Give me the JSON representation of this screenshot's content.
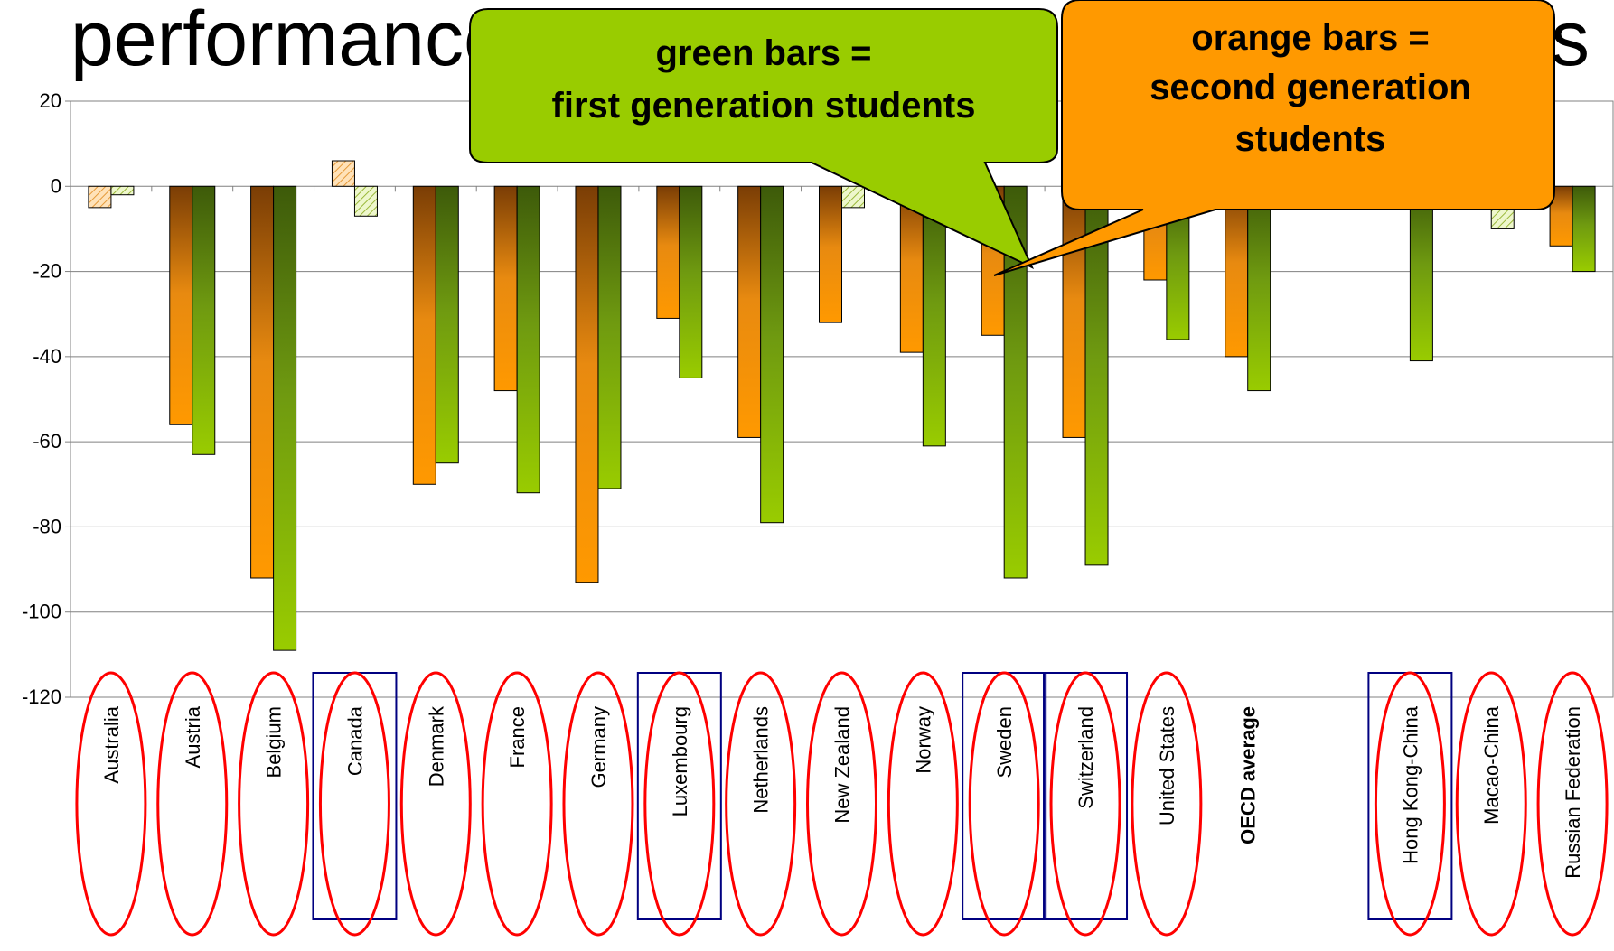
{
  "title_fragments": {
    "left": "performance by immig",
    "right": "s"
  },
  "callouts": {
    "green": {
      "line1": "green bars =",
      "line2": "first generation students"
    },
    "orange": {
      "line1": "orange bars =",
      "line2": "second generation",
      "line3": "students"
    }
  },
  "colors": {
    "second_generation": "#FF9900",
    "first_generation": "#99CC00",
    "callout_green": "#99CC00",
    "callout_orange": "#FF9900",
    "oval": "#FF0000",
    "box": "#000080"
  },
  "chart_data": {
    "type": "bar",
    "title": "",
    "xlabel": "",
    "ylabel": "",
    "ylim": [
      -120,
      20
    ],
    "yticks": [
      20,
      0,
      -20,
      -40,
      -60,
      -80,
      -100,
      -120
    ],
    "grid": true,
    "categories": [
      "Australia",
      "Austria",
      "Belgium",
      "Canada",
      "Denmark",
      "France",
      "Germany",
      "Luxembourg",
      "Netherlands",
      "New Zealand",
      "Norway",
      "Sweden",
      "Switzerland",
      "United States",
      "OECD average",
      "",
      "Hong Kong-China",
      "Macao-China",
      "Russian Federation"
    ],
    "series": [
      {
        "values": [
          -5,
          -56,
          -92,
          6,
          -70,
          -48,
          -93,
          -31,
          -59,
          -32,
          -39,
          -35,
          -59,
          -22,
          -40,
          null,
          null,
          null,
          -14
        ],
        "not_significant": [
          true,
          false,
          false,
          true,
          false,
          false,
          false,
          false,
          false,
          false,
          false,
          false,
          false,
          false,
          false,
          false,
          false,
          false,
          false
        ]
      },
      {
        "values": [
          -2,
          -63,
          -109,
          -7,
          -65,
          -72,
          -71,
          -45,
          -79,
          -5,
          -61,
          -92,
          -89,
          -36,
          -48,
          null,
          -41,
          -10,
          -20
        ],
        "not_significant": [
          true,
          false,
          false,
          true,
          false,
          false,
          false,
          false,
          false,
          true,
          false,
          false,
          false,
          false,
          false,
          false,
          false,
          true,
          false
        ]
      }
    ],
    "bold_categories": [
      "OECD average"
    ],
    "circled_categories": [
      "Australia",
      "Austria",
      "Belgium",
      "Canada",
      "Denmark",
      "France",
      "Germany",
      "Luxembourg",
      "Netherlands",
      "New Zealand",
      "Norway",
      "Sweden",
      "Switzerland",
      "United States",
      "Hong Kong-China",
      "Macao-China",
      "Russian Federation"
    ],
    "boxed_categories": [
      "Canada",
      "Luxembourg",
      "Sweden",
      "Switzerland",
      "Hong Kong-China"
    ]
  }
}
